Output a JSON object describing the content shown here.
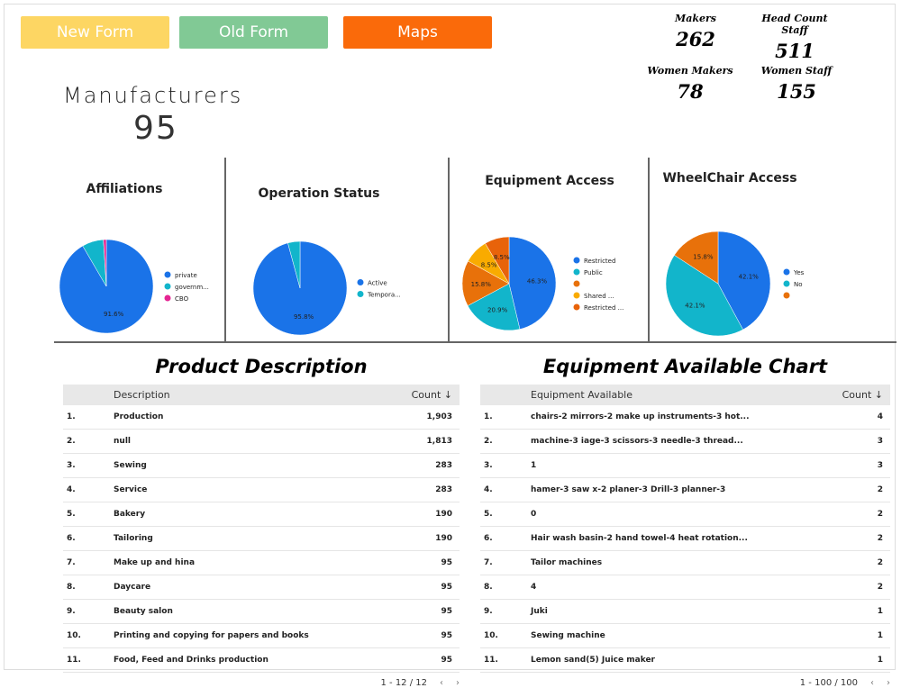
{
  "buttons": [
    "New Form",
    "Old Form",
    "Maps"
  ],
  "stats": [
    {
      "label": "Makers",
      "value": "262"
    },
    {
      "label": "Head Count Staff",
      "value": "511"
    },
    {
      "label": "Women Makers",
      "value": "78"
    },
    {
      "label": "Women Staff",
      "value": "155"
    }
  ],
  "headline": {
    "label": "Manufacturers",
    "value": "95"
  },
  "pies": [
    {
      "type": "pie",
      "title": "Affiliations",
      "categories": [
        "private",
        "governm...",
        "CBO"
      ],
      "values": [
        91.6,
        7.4,
        1.0
      ],
      "value_labels": [
        "91.6%",
        null,
        null
      ],
      "colors": [
        "#1a73e8",
        "#12b5cb",
        "#e52592"
      ]
    },
    {
      "type": "pie",
      "title": "Operation Status",
      "categories": [
        "Active",
        "Tempora..."
      ],
      "values": [
        95.8,
        4.2
      ],
      "value_labels": [
        "95.8%",
        null
      ],
      "colors": [
        "#1a73e8",
        "#12b5cb"
      ]
    },
    {
      "type": "pie",
      "title": "Equipment Access",
      "categories": [
        "Restricted",
        "Public",
        null,
        "Shared ...",
        "Restricted ..."
      ],
      "values": [
        46.3,
        20.9,
        15.8,
        8.5,
        8.5
      ],
      "value_labels": [
        "46.3%",
        "20.9%",
        "15.8%",
        "8.5%",
        "8.5%"
      ],
      "colors": [
        "#1a73e8",
        "#12b5cb",
        "#e8710a",
        "#f9ab00",
        "#e8630a"
      ]
    },
    {
      "type": "pie",
      "title": "WheelChair Access",
      "categories": [
        "Yes",
        "No",
        null
      ],
      "values": [
        42.1,
        42.1,
        15.8
      ],
      "value_labels": [
        "42.1%",
        "42.1%",
        "15.8%"
      ],
      "colors": [
        "#1a73e8",
        "#12b5cb",
        "#e8710a"
      ]
    }
  ],
  "tables": [
    {
      "title": "Product Description",
      "columns": [
        "Description",
        "Count ↓"
      ],
      "pagination": "1 - 12 / 12",
      "rows": [
        [
          "1.",
          "Production",
          "1,903"
        ],
        [
          "2.",
          "null",
          "1,813"
        ],
        [
          "3.",
          "Sewing",
          "283"
        ],
        [
          "4.",
          "Service",
          "283"
        ],
        [
          "5.",
          "Bakery",
          "190"
        ],
        [
          "6.",
          "Tailoring",
          "190"
        ],
        [
          "7.",
          "Make up and hina",
          "95"
        ],
        [
          "8.",
          "Daycare",
          "95"
        ],
        [
          "9.",
          "Beauty salon",
          "95"
        ],
        [
          "10.",
          "Printing and copying for papers and books",
          "95"
        ],
        [
          "11.",
          "Food, Feed and Drinks production",
          "95"
        ]
      ]
    },
    {
      "title": "Equipment Available Chart",
      "columns": [
        "Equipment Available",
        "Count ↓"
      ],
      "pagination": "1 - 100 / 100",
      "rows": [
        [
          "1.",
          "chairs-2 mirrors-2 make up instruments-3 hot...",
          "4"
        ],
        [
          "2.",
          "machine-3 iage-3 scissors-3 needle-3 thread...",
          "3"
        ],
        [
          "3.",
          "1",
          "3"
        ],
        [
          "4.",
          "hamer-3 saw x-2 planer-3 Drill-3 planner-3",
          "2"
        ],
        [
          "5.",
          "0",
          "2"
        ],
        [
          "6.",
          "Hair wash basin-2 hand towel-4 heat rotation...",
          "2"
        ],
        [
          "7.",
          "Tailor machines",
          "2"
        ],
        [
          "8.",
          "4",
          "2"
        ],
        [
          "9.",
          "Juki",
          "1"
        ],
        [
          "10.",
          "Sewing machine",
          "1"
        ],
        [
          "11.",
          "Lemon sand(5) Juice maker",
          "1"
        ]
      ]
    }
  ]
}
